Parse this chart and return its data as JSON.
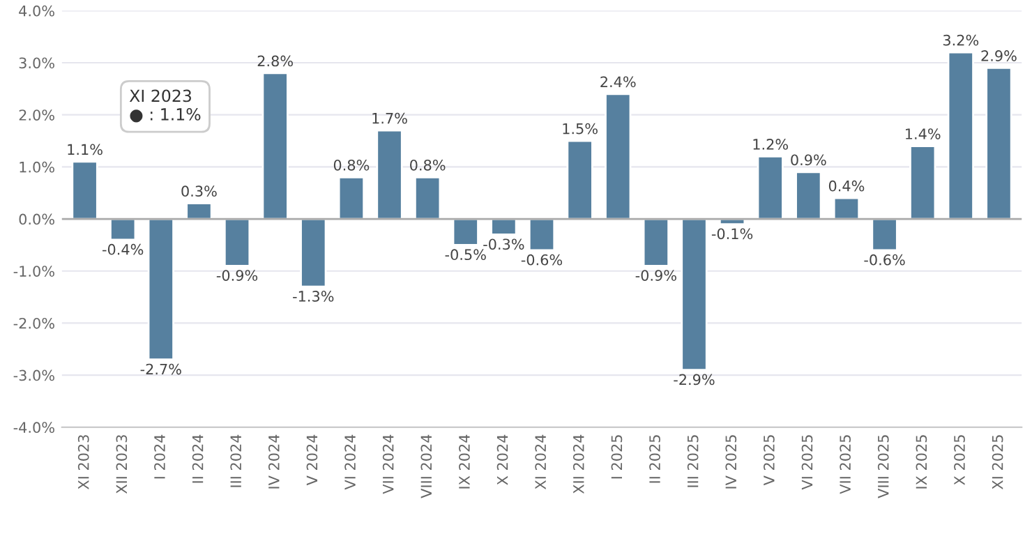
{
  "chart_data": {
    "type": "bar",
    "categories": [
      "XI 2023",
      "XII 2023",
      "I 2024",
      "II 2024",
      "III 2024",
      "IV 2024",
      "V 2024",
      "VI 2024",
      "VII 2024",
      "VIII 2024",
      "IX 2024",
      "X 2024",
      "XI 2024",
      "XII 2024",
      "I 2025",
      "II 2025",
      "III 2025",
      "IV 2025",
      "V 2025",
      "VI 2025",
      "VII 2025",
      "VIII 2025",
      "IX 2025",
      "X 2025",
      "XI 2025"
    ],
    "series": [
      {
        "color": "#56809f",
        "values": [
          1.1,
          -0.4,
          -2.7,
          0.3,
          -0.9,
          2.8,
          -1.3,
          0.8,
          1.7,
          0.8,
          -0.5,
          -0.3,
          -0.6,
          1.5,
          2.4,
          -0.9,
          -2.9,
          -0.1,
          1.2,
          0.9,
          0.4,
          -0.6,
          1.4,
          3.2,
          2.9
        ],
        "value_labels": [
          "1.1%",
          "-0.4%",
          "-2.7%",
          "0.3%",
          "-0.9%",
          "2.8%",
          "-1.3%",
          "0.8%",
          "1.7%",
          "0.8%",
          "-0.5%",
          "-0.3%",
          "-0.6%",
          "1.5%",
          "2.4%",
          "-0.9%",
          "-2.9%",
          "-0.1%",
          "1.2%",
          "0.9%",
          "0.4%",
          "-0.6%",
          "1.4%",
          "3.2%",
          "2.9%"
        ]
      }
    ],
    "ylim": [
      -4,
      4
    ],
    "yticks": [
      {
        "value": -4,
        "label": "-4.0%"
      },
      {
        "value": -3,
        "label": "-3.0%"
      },
      {
        "value": -2,
        "label": "-2.0%"
      },
      {
        "value": -1,
        "label": "-1.0%"
      },
      {
        "value": 0,
        "label": "0.0%"
      },
      {
        "value": 1,
        "label": "1.0%"
      },
      {
        "value": 2,
        "label": "2.0%"
      },
      {
        "value": 3,
        "label": "3.0%"
      },
      {
        "value": 4,
        "label": "4.0%"
      }
    ],
    "grid": "y",
    "annotations": [
      "XI 2023\n● : 1.1%"
    ]
  }
}
